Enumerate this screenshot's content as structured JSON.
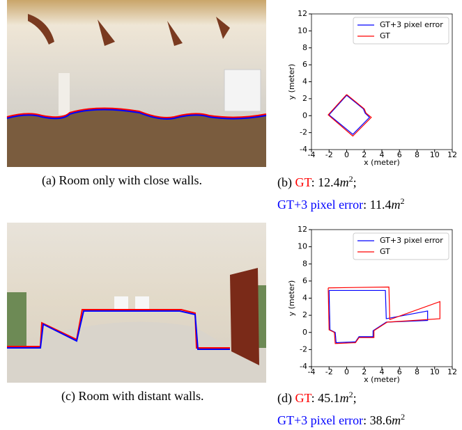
{
  "chart_data": [
    {
      "type": "line",
      "xlabel": "x (meter)",
      "ylabel": "y (meter)",
      "xlim": [
        -4,
        12
      ],
      "ylim": [
        -4,
        12
      ],
      "xticks": [
        -4,
        -2,
        0,
        2,
        4,
        6,
        8,
        10,
        12
      ],
      "yticks": [
        -4,
        -2,
        0,
        2,
        4,
        6,
        8,
        10,
        12
      ],
      "legend": "upper right",
      "series": [
        {
          "name": "GT+3 pixel error",
          "color": "#0000ff",
          "x": [
            0,
            1.9,
            2.1,
            2.6,
            0.7,
            -2.0,
            0
          ],
          "values": [
            2.4,
            0.8,
            0.3,
            -0.2,
            -2.2,
            0.1,
            2.4
          ]
        },
        {
          "name": "GT",
          "color": "#ff0000",
          "x": [
            0,
            2.0,
            2.2,
            2.8,
            0.7,
            -2.1,
            0
          ],
          "values": [
            2.5,
            0.8,
            0.3,
            -0.2,
            -2.4,
            0.1,
            2.5
          ]
        }
      ]
    },
    {
      "type": "line",
      "xlabel": "x (meter)",
      "ylabel": "y (meter)",
      "xlim": [
        -4,
        12
      ],
      "ylim": [
        -4,
        12
      ],
      "xticks": [
        -4,
        -2,
        0,
        2,
        4,
        6,
        8,
        10,
        12
      ],
      "yticks": [
        -4,
        -2,
        0,
        2,
        4,
        6,
        8,
        10,
        12
      ],
      "legend": "upper right",
      "series": [
        {
          "name": "GT+3 pixel error",
          "color": "#0000ff",
          "x": [
            -2.0,
            4.4,
            4.5,
            9.2,
            9.2,
            4.5,
            3.0,
            3.0,
            1.4,
            1.0,
            -1.2,
            -1.3,
            -1.9,
            -2.0
          ],
          "values": [
            4.9,
            4.9,
            1.6,
            2.5,
            1.4,
            1.2,
            0.2,
            -0.5,
            -0.5,
            -1.1,
            -1.2,
            0.0,
            0.3,
            4.9
          ]
        },
        {
          "name": "GT",
          "color": "#ff0000",
          "x": [
            -2.1,
            4.8,
            4.9,
            10.6,
            10.6,
            4.6,
            3.1,
            3.1,
            1.4,
            1.0,
            -1.3,
            -1.4,
            -2.0,
            -2.1
          ],
          "values": [
            5.2,
            5.3,
            1.5,
            3.6,
            1.6,
            1.2,
            0.2,
            -0.6,
            -0.6,
            -1.2,
            -1.3,
            0.0,
            0.3,
            5.2
          ]
        }
      ]
    }
  ],
  "captions": [
    [
      {
        "text": "(a) Room only with close walls.",
        "color": "#000000"
      }
    ],
    [
      {
        "text": "(b) ",
        "color": "#000000"
      },
      {
        "text": "GT",
        "color": "#ff0000"
      },
      {
        "text": ": 12.4",
        "color": "#000000"
      },
      {
        "text": "m",
        "color": "#000000",
        "style": "italic"
      },
      {
        "text": "2",
        "color": "#000000",
        "style": "sup"
      },
      {
        "text": ";",
        "color": "#000000"
      },
      {
        "text": "GT+3 pixel error",
        "color": "#0000ff",
        "style": "newline"
      },
      {
        "text": ": 11.4",
        "color": "#000000"
      },
      {
        "text": "m",
        "color": "#000000",
        "style": "italic"
      },
      {
        "text": "2",
        "color": "#000000",
        "style": "sup"
      }
    ],
    [
      {
        "text": "(c) Room with distant walls.",
        "color": "#000000"
      }
    ],
    [
      {
        "text": "(d) ",
        "color": "#000000"
      },
      {
        "text": "GT",
        "color": "#ff0000"
      },
      {
        "text": ": 45.1",
        "color": "#000000"
      },
      {
        "text": "m",
        "color": "#000000",
        "style": "italic"
      },
      {
        "text": "2",
        "color": "#000000",
        "style": "sup"
      },
      {
        "text": ";",
        "color": "#000000"
      },
      {
        "text": "GT+3 pixel error",
        "color": "#0000ff",
        "style": "newline"
      },
      {
        "text": ": 38.6",
        "color": "#000000"
      },
      {
        "text": "m",
        "color": "#000000",
        "style": "italic"
      },
      {
        "text": "2",
        "color": "#000000",
        "style": "sup"
      }
    ]
  ]
}
